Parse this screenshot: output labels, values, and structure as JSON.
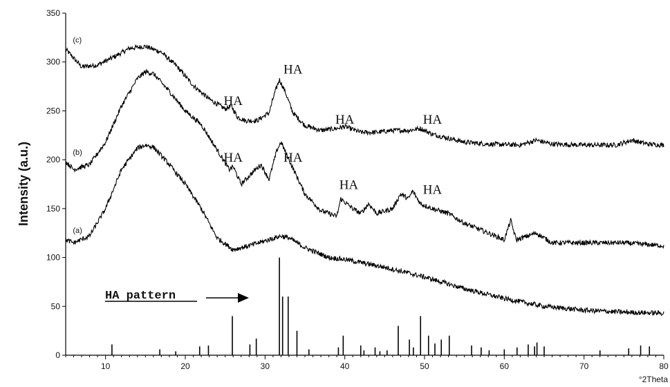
{
  "chart_data": {
    "type": "line",
    "title": "",
    "xlabel": "°2Theta",
    "ylabel": "Intensity (a.u.)",
    "xlim": [
      5,
      80
    ],
    "ylim": [
      0,
      350
    ],
    "xticks": [
      10,
      20,
      30,
      40,
      50,
      60,
      70,
      80
    ],
    "yticks": [
      0,
      50,
      100,
      150,
      200,
      250,
      300,
      350
    ],
    "grid": false,
    "series": [
      {
        "name": "(c)",
        "x": [
          5,
          7,
          9,
          11,
          13,
          15,
          17,
          19,
          21,
          23,
          25,
          25.8,
          26.5,
          27.5,
          29,
          30.5,
          31.2,
          31.8,
          32.5,
          33.5,
          35,
          37,
          39,
          40,
          42,
          44,
          46,
          48,
          49.5,
          51,
          53,
          55,
          58,
          62,
          64,
          66,
          70,
          74,
          76,
          78,
          80
        ],
        "y": [
          313,
          295,
          297,
          305,
          314,
          316,
          310,
          295,
          276,
          262,
          252,
          255,
          244,
          240,
          240,
          248,
          268,
          282,
          270,
          248,
          235,
          230,
          232,
          234,
          228,
          228,
          230,
          230,
          232,
          226,
          222,
          218,
          216,
          215,
          220,
          216,
          215,
          215,
          220,
          216,
          215
        ]
      },
      {
        "name": "(b)",
        "x": [
          5,
          6,
          8,
          10,
          12,
          14,
          15,
          16,
          18,
          20,
          22,
          24,
          25.5,
          26,
          27,
          28.8,
          29.5,
          30.5,
          31.5,
          32,
          33,
          35,
          37,
          39,
          39.5,
          41,
          42,
          43,
          44,
          46,
          47,
          48,
          48.5,
          49.5,
          51,
          53,
          55,
          58,
          60,
          60.8,
          61.5,
          64,
          66,
          70,
          75,
          80
        ],
        "y": [
          198,
          190,
          195,
          218,
          255,
          283,
          290,
          288,
          270,
          250,
          236,
          210,
          190,
          193,
          175,
          190,
          195,
          180,
          210,
          218,
          200,
          165,
          148,
          142,
          160,
          150,
          145,
          155,
          145,
          150,
          165,
          160,
          168,
          155,
          150,
          145,
          135,
          125,
          118,
          138,
          118,
          125,
          115,
          115,
          115,
          112
        ]
      },
      {
        "name": "(a)",
        "x": [
          5,
          6,
          8,
          10,
          12,
          14,
          15,
          16,
          18,
          20,
          22,
          24,
          26,
          28,
          30,
          32,
          33,
          35,
          38,
          40,
          45,
          50,
          55,
          60,
          65,
          70,
          75,
          80
        ],
        "y": [
          118,
          115,
          122,
          150,
          190,
          212,
          215,
          213,
          195,
          175,
          150,
          120,
          108,
          112,
          117,
          122,
          120,
          110,
          100,
          98,
          90,
          80,
          68,
          58,
          50,
          46,
          44,
          43
        ]
      }
    ],
    "reference_pattern": {
      "name": "HA pattern",
      "x": [
        10.8,
        16.8,
        18.8,
        21.8,
        22.9,
        25.9,
        28.1,
        28.9,
        31.8,
        32.2,
        32.9,
        34.0,
        35.5,
        39.2,
        39.8,
        42.0,
        42.4,
        43.8,
        44.4,
        45.3,
        46.7,
        48.1,
        48.6,
        49.5,
        50.5,
        51.3,
        52.1,
        53.1,
        55.9,
        57.1,
        58.1,
        60.0,
        61.6,
        63.0,
        63.8,
        64.1,
        65.0,
        72.0,
        75.6,
        77.1,
        78.2
      ],
      "y": [
        11,
        6,
        4,
        9,
        10,
        40,
        11,
        17,
        100,
        60,
        60,
        25,
        6,
        8,
        20,
        10,
        5,
        8,
        4,
        5,
        30,
        16,
        8,
        40,
        20,
        12,
        16,
        20,
        10,
        8,
        5,
        6,
        8,
        11,
        9,
        13,
        9,
        5,
        7,
        10,
        9
      ]
    },
    "annotations": [
      "HA",
      "HA",
      "HA",
      "HA",
      "HA",
      "HA",
      "HA",
      "HA"
    ],
    "pattern_label": "HA pattern"
  }
}
